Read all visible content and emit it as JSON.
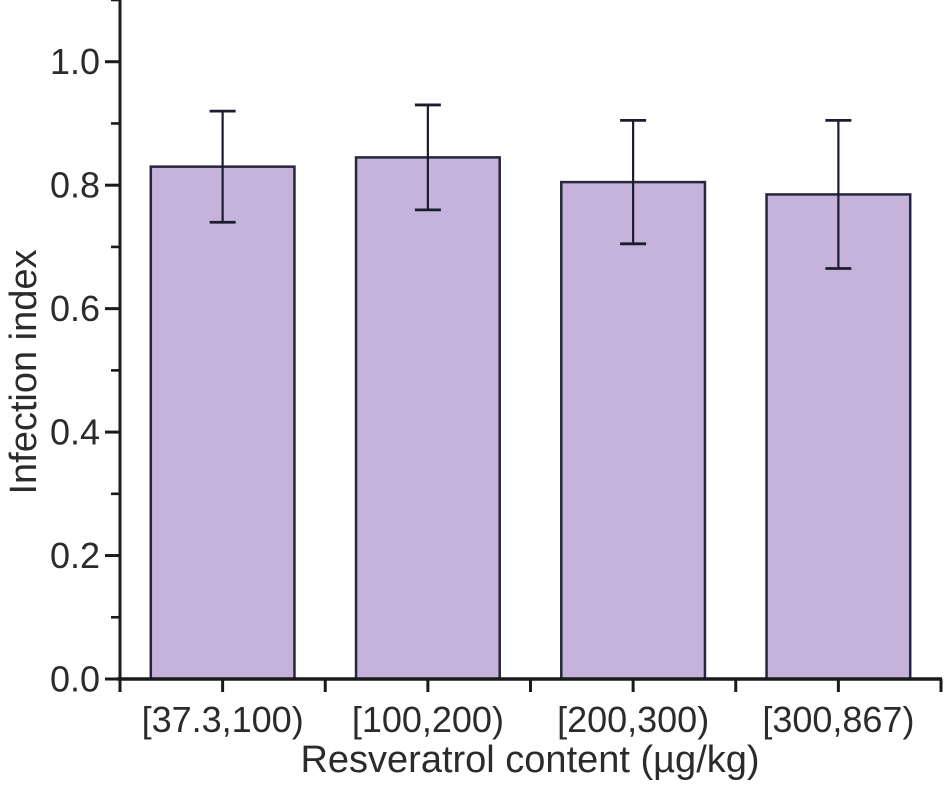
{
  "chart_data": {
    "type": "bar",
    "xlabel": "Resveratrol content (µg/kg)",
    "ylabel": "Infection index",
    "categories": [
      "[37.3,100)",
      "[100,200)",
      "[200,300)",
      "[300,867)"
    ],
    "values": [
      0.83,
      0.845,
      0.805,
      0.785
    ],
    "error_bars": [
      0.09,
      0.085,
      0.1,
      0.12
    ],
    "ylim": [
      0,
      1.1
    ],
    "y_major_ticks": [
      0.0,
      0.2,
      0.4,
      0.6,
      0.8,
      1.0
    ],
    "y_tick_labels": [
      "0.0",
      "0.2",
      "0.4",
      "0.6",
      "0.8",
      "1.0"
    ],
    "y_minor_tick_step": 0.1,
    "grid": false,
    "legend": false,
    "bar_fill": "#C5B3DC",
    "bar_stroke": "#26263C",
    "error_color": "#1C1C30",
    "axis_color": "#1A1A1A",
    "text_color": "#2B2B2B",
    "background_color": "#FFFFFF"
  }
}
